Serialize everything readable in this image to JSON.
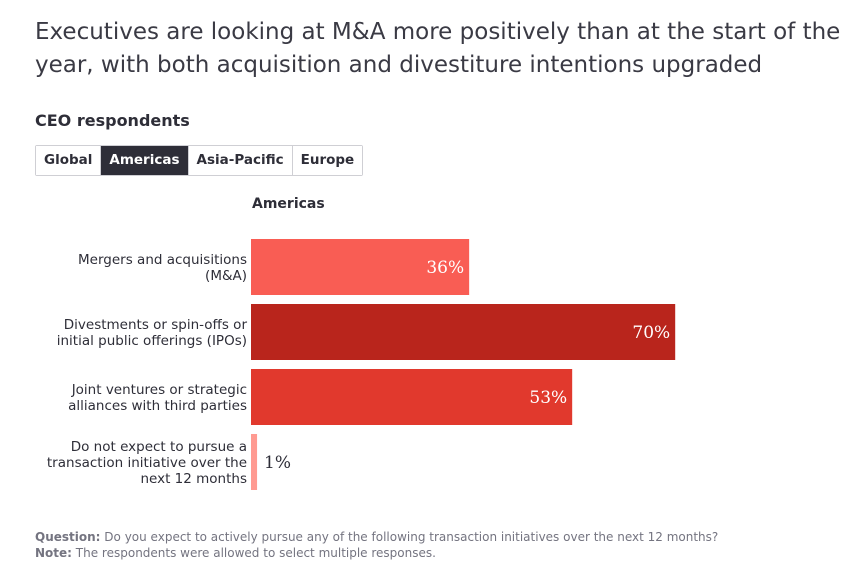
{
  "title": "Executives are looking at M&A more positively than at the start of the year, with both acquisition and divestiture intentions upgraded",
  "subtitle": "CEO respondents",
  "tabs": [
    {
      "label": "Global",
      "active": false
    },
    {
      "label": "Americas",
      "active": true
    },
    {
      "label": "Asia-Pacific",
      "active": false
    },
    {
      "label": "Europe",
      "active": false
    }
  ],
  "footnote": {
    "question_label": "Question:",
    "question_text": "Do you expect to actively pursue any of the following transaction initiatives over the next 12 months?",
    "note_label": "Note:",
    "note_text": "The respondents were allowed to select multiple responses."
  },
  "chart_data": {
    "type": "bar",
    "orientation": "horizontal",
    "title": "Americas",
    "categories": [
      [
        "Mergers and acquisitions",
        "(M&A)"
      ],
      [
        "Divestments or spin-offs or",
        "initial public offerings (IPOs)"
      ],
      [
        "Joint ventures or strategic",
        "alliances with third parties"
      ],
      [
        "Do not expect to pursue a",
        "transaction initiative over the",
        "next 12 months"
      ]
    ],
    "values": [
      36,
      70,
      53,
      1
    ],
    "value_labels": [
      "36%",
      "70%",
      "53%",
      "1%"
    ],
    "colors": [
      "#f95d54",
      "#b9251c",
      "#e1392d",
      "#ff9a91"
    ],
    "xlim": [
      0,
      100
    ],
    "unit": "%"
  }
}
